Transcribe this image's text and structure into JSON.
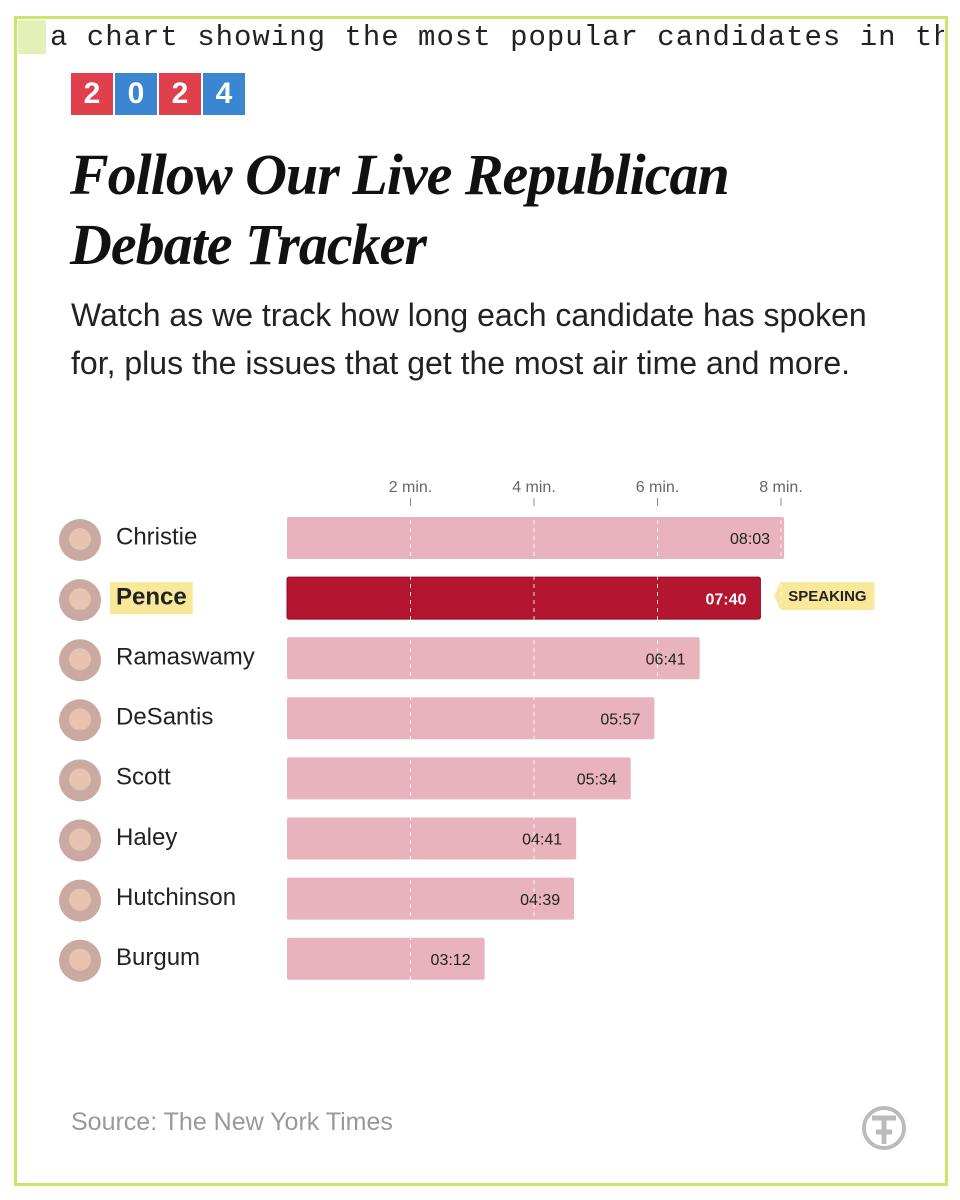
{
  "caption": "a chart showing the most popular candidates in the",
  "chart_data": {
    "type": "bar",
    "orientation": "horizontal",
    "badge": [
      "2",
      "0",
      "2",
      "4"
    ],
    "badge_colors": [
      "#e0404b",
      "#3b86d1",
      "#e0404b",
      "#3b86d1"
    ],
    "title": "Follow Our Live Republican Debate Tracker",
    "subtitle": "Watch as we track how long each candidate has spoken for, plus the issues that get the most air time and more.",
    "categories": [
      "Christie",
      "Pence",
      "Ramaswamy",
      "DeSantis",
      "Scott",
      "Haley",
      "Hutchinson",
      "Burgum"
    ],
    "values": [
      8.05,
      7.6667,
      6.6833,
      5.95,
      5.5667,
      4.6833,
      4.65,
      3.2
    ],
    "value_labels": [
      "08:03",
      "07:40",
      "06:41",
      "05:57",
      "05:34",
      "04:41",
      "04:39",
      "03:12"
    ],
    "colors": [
      "#e8b3bc",
      "#b5162f",
      "#e8b3bc",
      "#e8b3bc",
      "#e8b3bc",
      "#e8b3bc",
      "#e8b3bc",
      "#e8b3bc"
    ],
    "annotation": {
      "category": "Pence",
      "text": "SPEAKING"
    },
    "xlim": [
      0,
      8
    ],
    "xticks": [
      {
        "value": 2,
        "label": "2 min."
      },
      {
        "value": 4,
        "label": "4 min."
      },
      {
        "value": 6,
        "label": "6 min."
      },
      {
        "value": 8,
        "label": "8 min."
      }
    ],
    "grid": true,
    "source": "Source: The New York Times"
  }
}
